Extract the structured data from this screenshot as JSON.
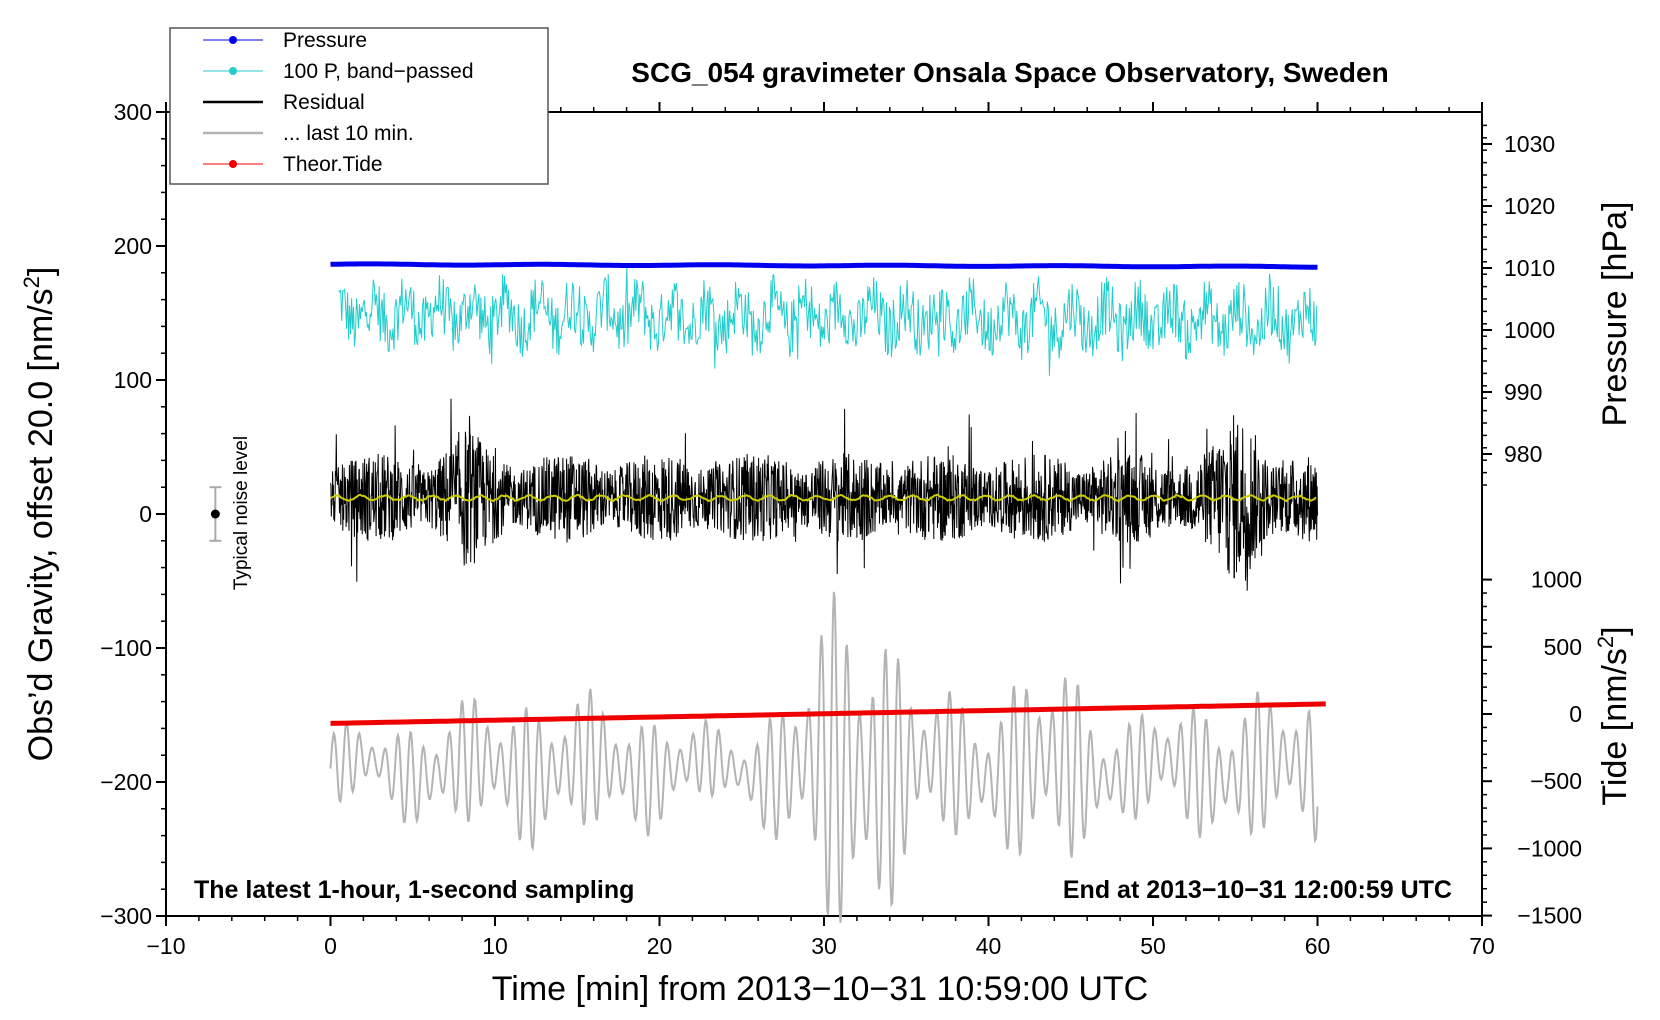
{
  "chart_data": {
    "type": "line",
    "title": "SCG_054 gravimeter Onsala Space Observatory, Sweden",
    "xlabel": "Time [min] from 2013−10−31 10:59:00 UTC",
    "ylabel_left": "Obs’d Gravity, offset 20.0 [nm/s",
    "ylabel_left_suffix": "]",
    "ylabel_right_pressure": "Pressure [hPa]",
    "ylabel_right_tide": "Tide [nm/s",
    "ylabel_right_tide_suffix": "]",
    "superscript": "2",
    "xlim": [
      -10,
      70
    ],
    "ylim": [
      -300,
      300
    ],
    "x_ticks": [
      "−10",
      "0",
      "10",
      "20",
      "30",
      "40",
      "50",
      "60",
      "70"
    ],
    "y_ticks": [
      "300",
      "200",
      "100",
      "0",
      "−100",
      "−200",
      "−300"
    ],
    "pressure_ticks": [
      "1030",
      "1020",
      "1010",
      "1000",
      "990",
      "980"
    ],
    "tide_ticks": [
      "1000",
      "500",
      "0",
      "−500",
      "−1000",
      "−1500"
    ],
    "note_left": "The latest 1-hour, 1-second sampling",
    "note_right": "End at 2013−10−31 12:00:59 UTC",
    "noise_label": "Typical noise level",
    "noise_level": {
      "x": -7,
      "y": 0,
      "half_range": 20
    },
    "legend": [
      {
        "label": "Pressure",
        "color": "#0000ee",
        "marker": true
      },
      {
        "label": "100 P, band−passed",
        "color": "#22cccc",
        "marker": true
      },
      {
        "label": "Residual",
        "color": "#000000",
        "marker": false
      },
      {
        "label": "... last 10 min.",
        "color": "#b4b4b4",
        "marker": false
      },
      {
        "label": "Theor.Tide",
        "color": "#ee0000",
        "marker": true
      }
    ],
    "series": [
      {
        "name": "Pressure",
        "color": "#0000ee",
        "axis": "pressure_hPa",
        "x_range": [
          0,
          60
        ],
        "start": 1010.6,
        "end": 1010.2
      },
      {
        "name": "100 P, band−passed",
        "color": "#22cccc",
        "axis": "left",
        "x_range": [
          0.5,
          60
        ],
        "mean": 150,
        "amplitude": 22
      },
      {
        "name": "Residual",
        "color": "#000000",
        "axis": "left",
        "x_range": [
          0,
          60
        ],
        "mean": 12,
        "amplitude": 35
      },
      {
        "name": "Smoothed residual",
        "color": "#cccc00",
        "axis": "left",
        "x_range": [
          0,
          60
        ],
        "mean": 12
      },
      {
        "name": "... last 10 min.",
        "color": "#b4b4b4",
        "axis": "left",
        "x_range": [
          0,
          60
        ],
        "mean": -190,
        "amplitude": 45
      },
      {
        "name": "Theor.Tide",
        "color": "#ee0000",
        "axis": "tide_nm_s2",
        "x_range": [
          0,
          60.5
        ],
        "start": -70,
        "end": 75
      }
    ]
  }
}
